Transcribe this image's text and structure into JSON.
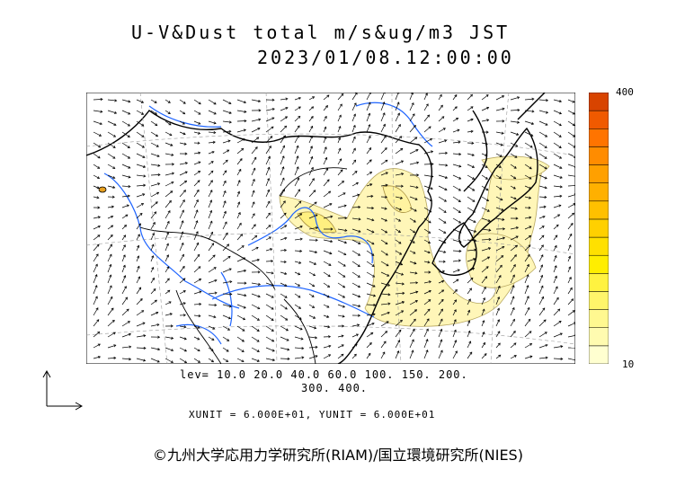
{
  "header": {
    "title_line1": "U-V&Dust total m/s&ug/m3 JST",
    "title_line2": "2023/01/08.12:00:00"
  },
  "colorbar": {
    "max_label": "400",
    "min_label": "10",
    "colors": [
      "#ffffd0",
      "#fffbb0",
      "#fff890",
      "#fff56a",
      "#fff240",
      "#ffee00",
      "#ffe000",
      "#ffd000",
      "#ffc000",
      "#ffb000",
      "#ffa000",
      "#ff8c00",
      "#ff7400",
      "#f05a00",
      "#d84400"
    ]
  },
  "legend": {
    "levels_line1": "lev= 10.0 20.0 40.0 60.0 100. 150. 200.",
    "levels_line2": "300. 400.",
    "units_line": "XUNIT = 6.000E+01, YUNIT = 6.000E+01"
  },
  "footer": {
    "credit": "©九州大学応用力学研究所(RIAM)/国立環境研究所(NIES)"
  },
  "colors": {
    "dust_light": "#fff6b8",
    "dust_mid": "#fff080",
    "river": "#1e64ff",
    "coast": "#000000",
    "border": "#555555"
  }
}
